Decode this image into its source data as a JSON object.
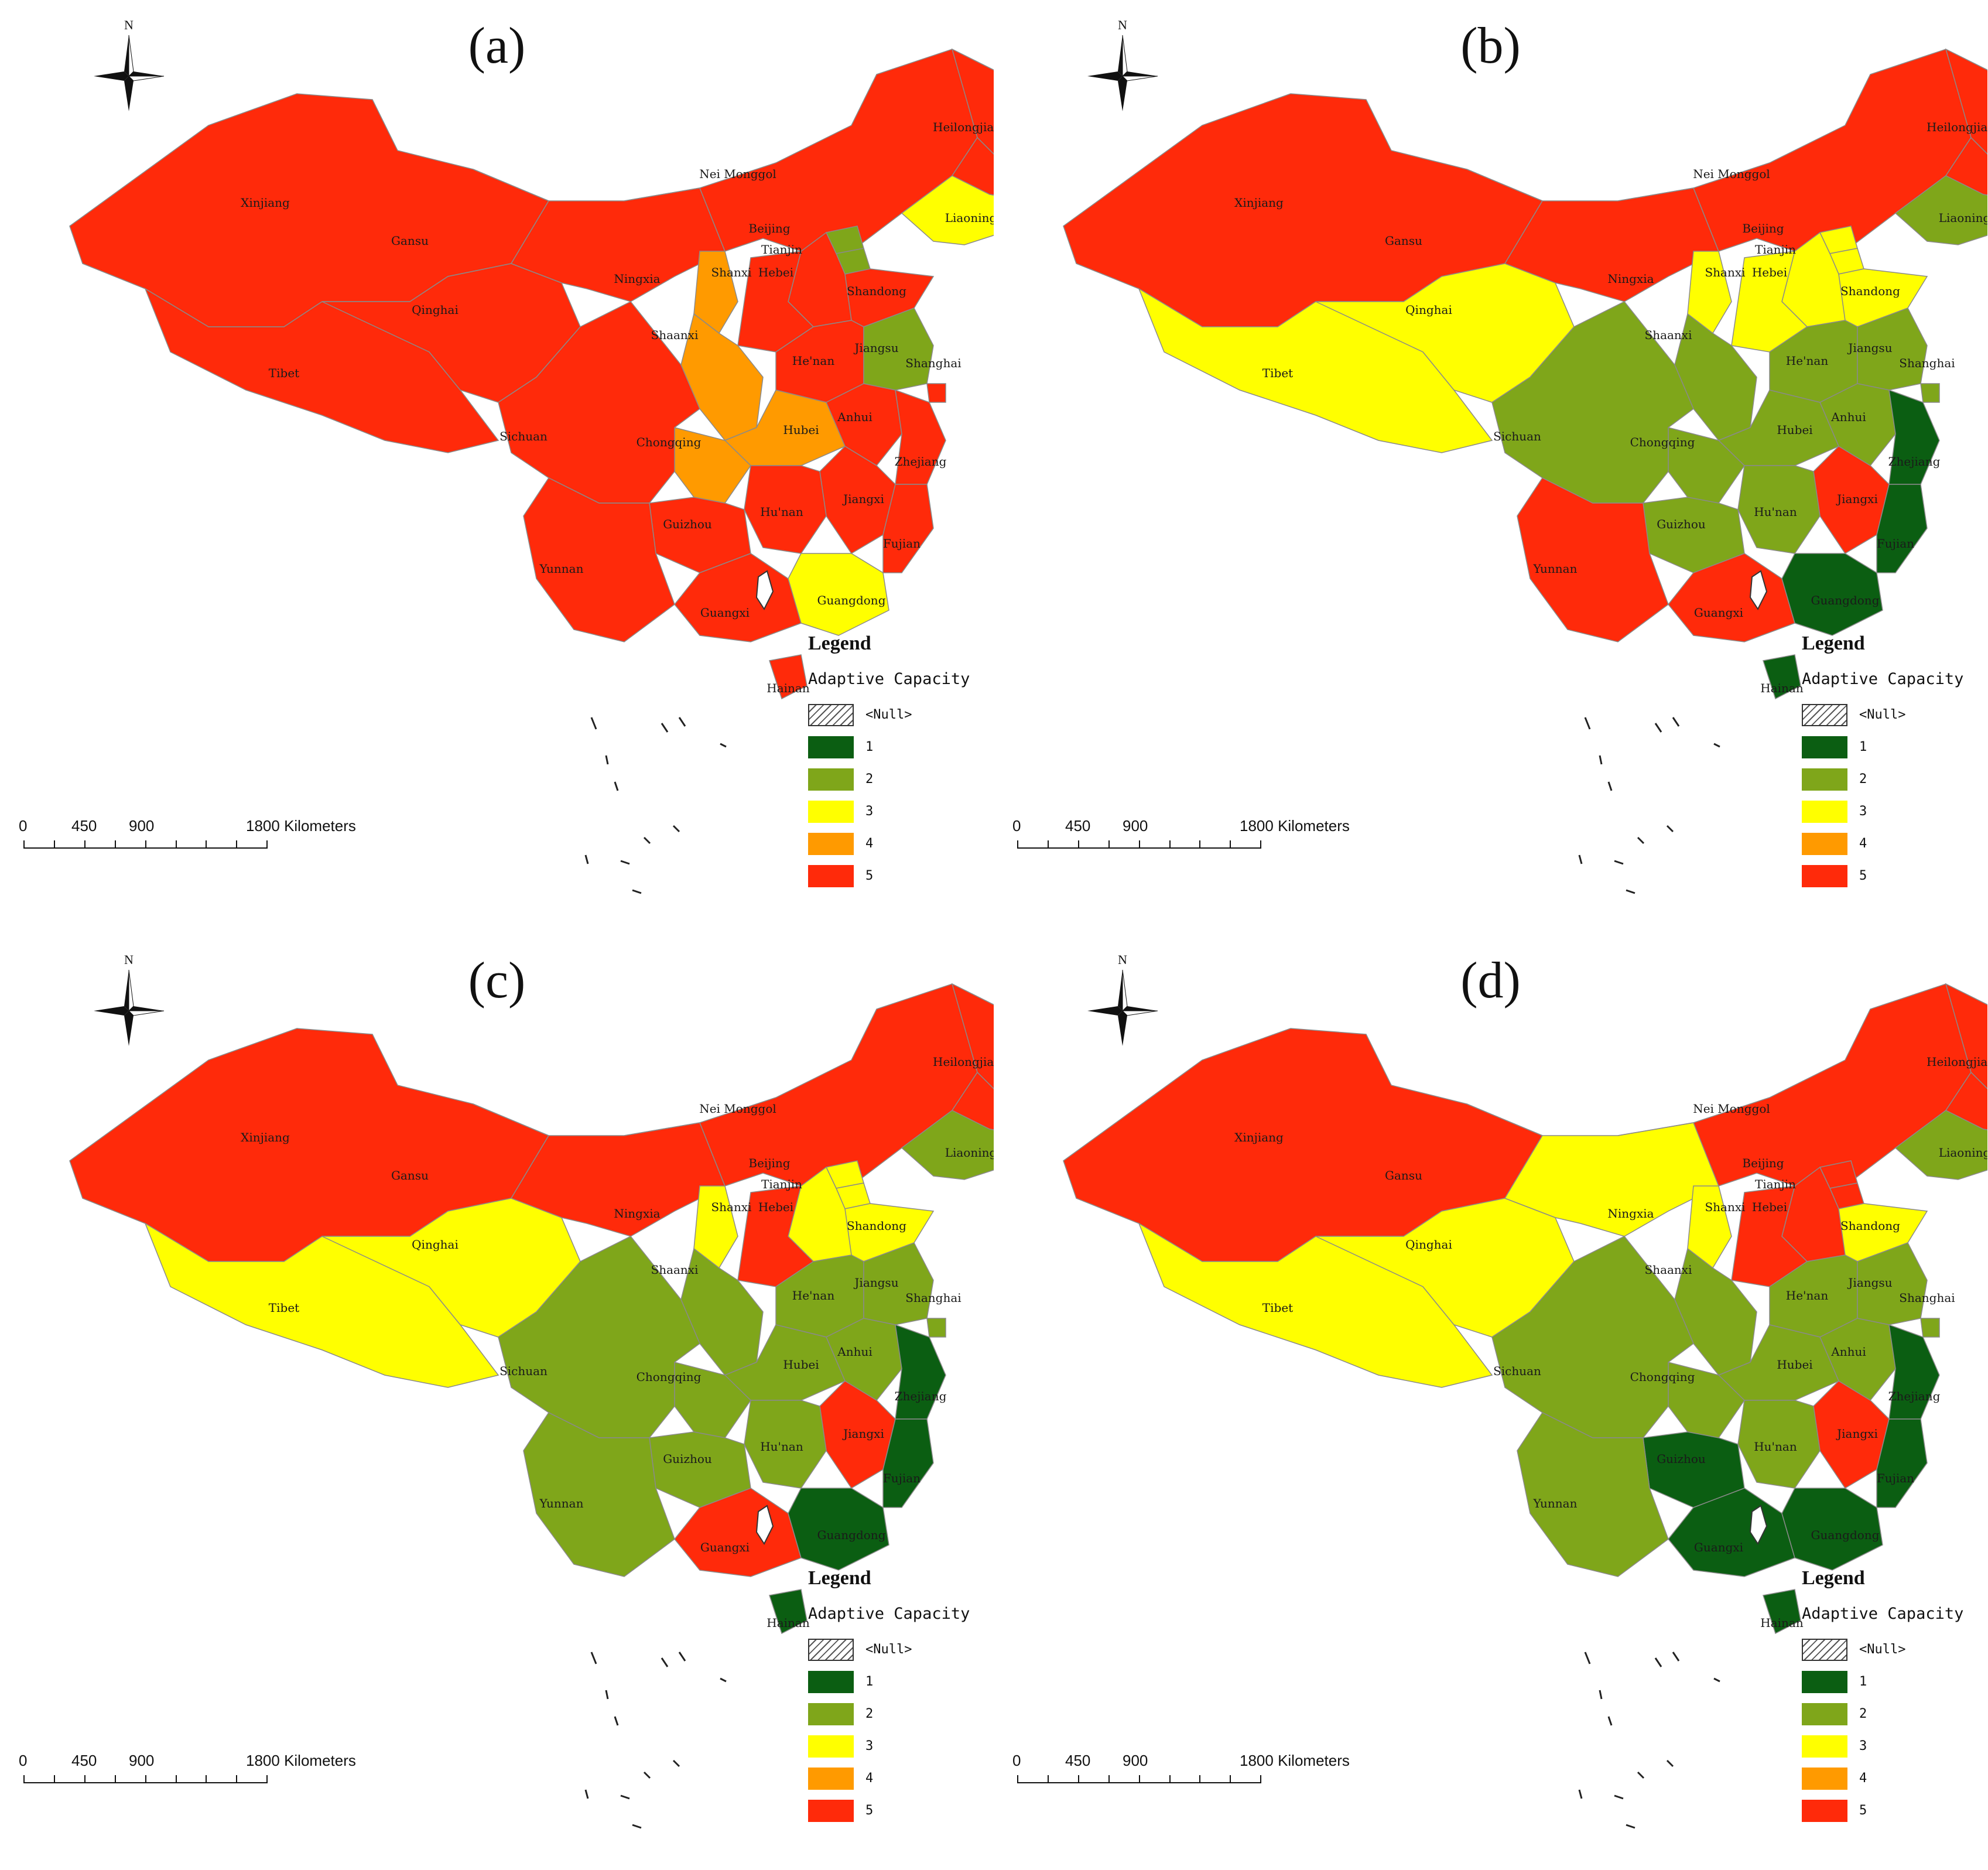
{
  "colors": {
    "class_1": "#0b5e12",
    "class_2": "#7fa61a",
    "class_3": "#ffff00",
    "class_4": "#ff9a00",
    "class_5": "#ff2a0a",
    "null": "hatched"
  },
  "north_label": "N",
  "scale": {
    "labels": [
      "0",
      "450",
      "900",
      "1800 Kilometers"
    ]
  },
  "legend": {
    "title": "Legend",
    "subtitle": "Adaptive Capacity",
    "items": [
      {
        "label": "<Null>",
        "class": "null"
      },
      {
        "label": "1",
        "class": "class_1"
      },
      {
        "label": "2",
        "class": "class_2"
      },
      {
        "label": "3",
        "class": "class_3"
      },
      {
        "label": "4",
        "class": "class_4"
      },
      {
        "label": "5",
        "class": "class_5"
      }
    ]
  },
  "panels": [
    {
      "title": "(a)",
      "provinces": {
        "Xinjiang": 5,
        "Tibet": 5,
        "Qinghai": 5,
        "Gansu": 5,
        "Nei Monggol": 5,
        "Heilongjiang": 5,
        "Jilin": 5,
        "Liaoning": 3,
        "Beijing": 2,
        "Tianjin": 2,
        "Hebei": 5,
        "Shanxi": 5,
        "Shandong": 5,
        "Ningxia": 4,
        "Shaanxi": 4,
        "He'nan": 5,
        "Jiangsu": 2,
        "Shanghai": 5,
        "Anhui": 5,
        "Hubei": 4,
        "Chongqing": 4,
        "Sichuan": 5,
        "Zhejiang": 5,
        "Jiangxi": 5,
        "Hu'nan": 5,
        "Guizhou": 5,
        "Yunnan": 5,
        "Guangxi": 5,
        "Guangdong": 3,
        "Fujian": 5,
        "Hainan": 5
      }
    },
    {
      "title": "(b)",
      "provinces": {
        "Xinjiang": 5,
        "Tibet": 3,
        "Qinghai": 3,
        "Gansu": 5,
        "Nei Monggol": 5,
        "Heilongjiang": 5,
        "Jilin": 5,
        "Liaoning": 2,
        "Beijing": 3,
        "Tianjin": 3,
        "Hebei": 3,
        "Shanxi": 3,
        "Shandong": 3,
        "Ningxia": 3,
        "Shaanxi": 2,
        "He'nan": 2,
        "Jiangsu": 2,
        "Shanghai": 2,
        "Anhui": 2,
        "Hubei": 2,
        "Chongqing": 2,
        "Sichuan": 2,
        "Zhejiang": 1,
        "Jiangxi": 5,
        "Hu'nan": 2,
        "Guizhou": 2,
        "Yunnan": 5,
        "Guangxi": 5,
        "Guangdong": 1,
        "Fujian": 1,
        "Hainan": 1
      }
    },
    {
      "title": "(c)",
      "provinces": {
        "Xinjiang": 5,
        "Tibet": 3,
        "Qinghai": 3,
        "Gansu": 5,
        "Nei Monggol": 5,
        "Heilongjiang": 5,
        "Jilin": 5,
        "Liaoning": 2,
        "Beijing": 3,
        "Tianjin": 3,
        "Hebei": 3,
        "Shanxi": 5,
        "Shandong": 3,
        "Ningxia": 3,
        "Shaanxi": 2,
        "He'nan": 2,
        "Jiangsu": 2,
        "Shanghai": 2,
        "Anhui": 2,
        "Hubei": 2,
        "Chongqing": 2,
        "Sichuan": 2,
        "Zhejiang": 1,
        "Jiangxi": 5,
        "Hu'nan": 2,
        "Guizhou": 2,
        "Yunnan": 2,
        "Guangxi": 5,
        "Guangdong": 1,
        "Fujian": 1,
        "Hainan": 1
      }
    },
    {
      "title": "(d)",
      "provinces": {
        "Xinjiang": 5,
        "Tibet": 3,
        "Qinghai": 3,
        "Gansu": 3,
        "Nei Monggol": 5,
        "Heilongjiang": 5,
        "Jilin": 5,
        "Liaoning": 2,
        "Beijing": 5,
        "Tianjin": 5,
        "Hebei": 5,
        "Shanxi": 5,
        "Shandong": 3,
        "Ningxia": 3,
        "Shaanxi": 2,
        "He'nan": 2,
        "Jiangsu": 2,
        "Shanghai": 2,
        "Anhui": 2,
        "Hubei": 2,
        "Chongqing": 2,
        "Sichuan": 2,
        "Zhejiang": 1,
        "Jiangxi": 5,
        "Hu'nan": 2,
        "Guizhou": 1,
        "Yunnan": 2,
        "Guangxi": 1,
        "Guangdong": 1,
        "Fujian": 1,
        "Hainan": 1
      }
    }
  ]
}
